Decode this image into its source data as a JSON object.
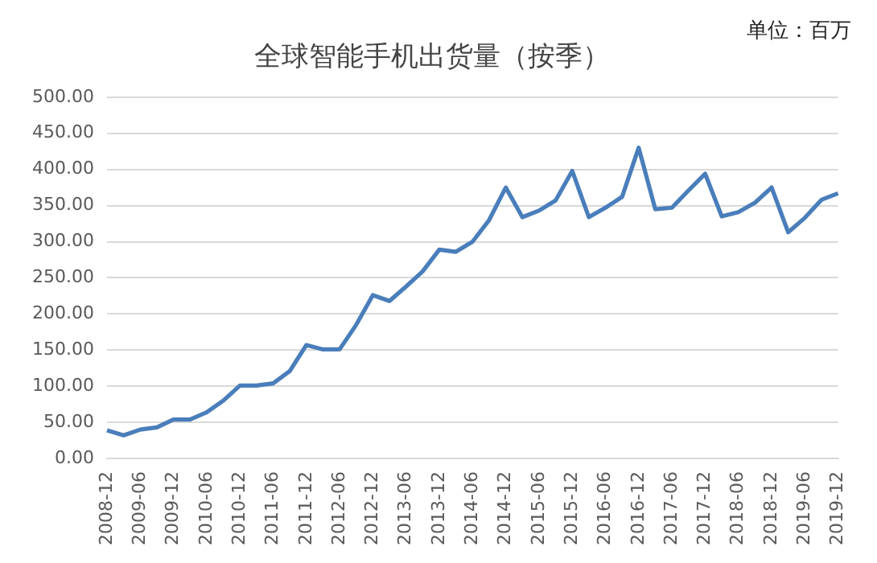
{
  "chart_data": {
    "type": "line",
    "title": "全球智能手机出货量（按季）",
    "annotations": [
      "单位：百万"
    ],
    "categories": [
      "2008-12",
      null,
      "2009-06",
      null,
      "2009-12",
      null,
      "2010-06",
      null,
      "2010-12",
      null,
      "2011-06",
      null,
      "2011-12",
      null,
      "2012-06",
      null,
      "2012-12",
      null,
      "2013-06",
      null,
      "2013-12",
      null,
      "2014-06",
      null,
      "2014-12",
      null,
      "2015-06",
      null,
      "2015-12",
      null,
      "2016-06",
      null,
      "2016-12",
      null,
      "2017-06",
      null,
      "2017-12",
      null,
      "2018-06",
      null,
      "2018-12",
      null,
      "2019-06",
      null,
      "2019-12"
    ],
    "series": [
      {
        "color": "#4a7ebb",
        "values": [
          39,
          32,
          40,
          43,
          54,
          54,
          64,
          80,
          101,
          101,
          104,
          121,
          157,
          151,
          151,
          185,
          226,
          218,
          238,
          259,
          289,
          286,
          300,
          330,
          375,
          334,
          343,
          357,
          398,
          334,
          347,
          362,
          430,
          345,
          347,
          371,
          394,
          335,
          341,
          354,
          375,
          313,
          333,
          358,
          367
        ]
      }
    ],
    "ylim": [
      0,
      500
    ],
    "yticks": [
      {
        "value": 0,
        "label": "0.00"
      },
      {
        "value": 50,
        "label": "50.00"
      },
      {
        "value": 100,
        "label": "100.00"
      },
      {
        "value": 150,
        "label": "150.00"
      },
      {
        "value": 200,
        "label": "200.00"
      },
      {
        "value": 250,
        "label": "250.00"
      },
      {
        "value": 300,
        "label": "300.00"
      },
      {
        "value": 350,
        "label": "350.00"
      },
      {
        "value": 400,
        "label": "400.00"
      },
      {
        "value": 450,
        "label": "450.00"
      },
      {
        "value": 500,
        "label": "500.00"
      }
    ],
    "grid": "y",
    "legend": false,
    "marker": "none",
    "line_style": "solid"
  }
}
